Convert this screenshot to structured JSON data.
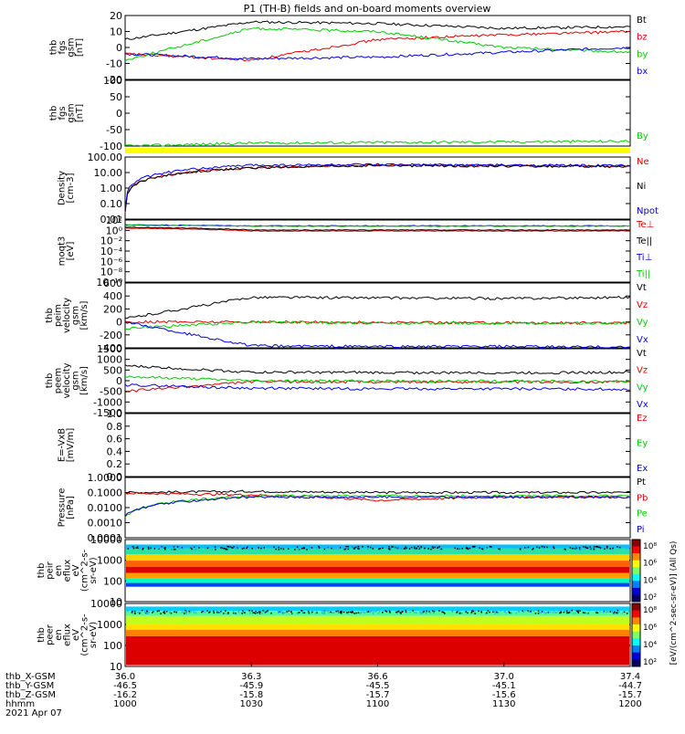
{
  "title": "P1 (TH-B) fields and on-board moments overview",
  "colors": {
    "black": "#000000",
    "red": "#dd0000",
    "green": "#00cc00",
    "blue": "#0000dd",
    "yellow": "#ffff00"
  },
  "panels": [
    {
      "id": "fgs",
      "ylabel": [
        "thb",
        "fgs",
        "gsm",
        "[nT]"
      ],
      "ticks": [
        "20",
        "10",
        "0",
        "-10",
        "-20"
      ],
      "legend": [
        {
          "label": "Bt",
          "color": "#000000"
        },
        {
          "label": "bz",
          "color": "#dd0000"
        },
        {
          "label": "by",
          "color": "#00cc00"
        },
        {
          "label": "bx",
          "color": "#0000dd"
        }
      ]
    },
    {
      "id": "fgs-dsl",
      "ylabel": [
        "thb",
        "fgs",
        "gsm",
        "[nT]"
      ],
      "ticks": [
        "100",
        "50",
        "0",
        "-50",
        "-100"
      ],
      "legend": [
        {
          "label": "By",
          "color": "#00cc00"
        }
      ]
    },
    {
      "id": "density",
      "ylabel": [
        "Density",
        "[cm-3]"
      ],
      "ticks": [
        "100.00",
        "10.00",
        "1.00",
        "0.10",
        "0.01"
      ],
      "legend": [
        {
          "label": "Ne",
          "color": "#dd0000"
        },
        {
          "label": "Ni",
          "color": "#000000"
        },
        {
          "label": "Npot",
          "color": "#0000dd"
        }
      ]
    },
    {
      "id": "temp",
      "ylabel": [
        "moqt3",
        "[eV]"
      ],
      "ticks": [
        "10²",
        "10⁰",
        "10⁻²",
        "10⁻⁴",
        "10⁻⁶",
        "10⁻⁸",
        "10⁻¹⁰"
      ],
      "legend": [
        {
          "label": "Te⊥",
          "color": "#dd0000"
        },
        {
          "label": "Te||",
          "color": "#000000"
        },
        {
          "label": "Ti⊥",
          "color": "#0000dd"
        },
        {
          "label": "Ti||",
          "color": "#00cc00"
        }
      ]
    },
    {
      "id": "peim",
      "ylabel": [
        "thb",
        "peim",
        "velocity",
        "gsm",
        "[km/s]"
      ],
      "ticks": [
        "600",
        "400",
        "200",
        "0",
        "-200",
        "-400"
      ],
      "legend": [
        {
          "label": "Vt",
          "color": "#000000"
        },
        {
          "label": "Vz",
          "color": "#dd0000"
        },
        {
          "label": "Vy",
          "color": "#00cc00"
        },
        {
          "label": "Vx",
          "color": "#0000dd"
        }
      ]
    },
    {
      "id": "peem",
      "ylabel": [
        "thb",
        "peem",
        "velocity",
        "gsm",
        "[km/s]"
      ],
      "ticks": [
        "1500",
        "1000",
        "500",
        "0",
        "-500",
        "-1000",
        "-1500"
      ],
      "legend": [
        {
          "label": "Vt",
          "color": "#000000"
        },
        {
          "label": "Vz",
          "color": "#dd0000"
        },
        {
          "label": "Vy",
          "color": "#00cc00"
        },
        {
          "label": "Vx",
          "color": "#0000dd"
        }
      ]
    },
    {
      "id": "efield",
      "ylabel": [
        "E=-VxB",
        "[mV/m]"
      ],
      "ticks": [
        "1.0",
        "0.8",
        "0.6",
        "0.4",
        "0.2",
        "0.0"
      ],
      "legend": [
        {
          "label": "Ez",
          "color": "#dd0000"
        },
        {
          "label": "Ey",
          "color": "#00cc00"
        },
        {
          "label": "Ex",
          "color": "#0000dd"
        }
      ]
    },
    {
      "id": "pressure",
      "ylabel": [
        "Pressure",
        "[nPa]"
      ],
      "ticks": [
        "1.0000",
        "0.1000",
        "0.0100",
        "0.0010",
        "0.0001"
      ],
      "legend": [
        {
          "label": "Pt",
          "color": "#000000"
        },
        {
          "label": "Pb",
          "color": "#dd0000"
        },
        {
          "label": "Pe",
          "color": "#00cc00"
        },
        {
          "label": "Pi",
          "color": "#0000dd"
        }
      ]
    },
    {
      "id": "peir",
      "ylabel": [
        "thb",
        "peir",
        "en",
        "eflux",
        "eV",
        "(cm^2-s-",
        "sr-eV)"
      ],
      "ticks": [
        "10000",
        "1000",
        "100",
        "10"
      ]
    },
    {
      "id": "peer",
      "ylabel": [
        "thb",
        "peer",
        "en",
        "eflux",
        "eV",
        "(cm^2-s-",
        "sr-eV)"
      ],
      "ticks": [
        "10000",
        "1000",
        "100",
        "10"
      ]
    }
  ],
  "colorbar": {
    "ticks": [
      "10⁸",
      "10⁶",
      "10⁴",
      "10²"
    ],
    "label": "[eV/(cm^2-sec-sr-eV)] (All Qs)"
  },
  "xaxis": {
    "row_labels": [
      "thb_X-GSM",
      "thb_Y-GSM",
      "thb_Z-GSM",
      "hhmm"
    ],
    "date": "2021 Apr 07",
    "columns": [
      {
        "x": "36.0",
        "y": "-46.5",
        "z": "-16.2",
        "hhmm": "1000"
      },
      {
        "x": "36.3",
        "y": "-45.9",
        "z": "-15.8",
        "hhmm": "1030"
      },
      {
        "x": "36.6",
        "y": "-45.5",
        "z": "-15.7",
        "hhmm": "1100"
      },
      {
        "x": "37.0",
        "y": "-45.1",
        "z": "-15.6",
        "hhmm": "1130"
      },
      {
        "x": "37.4",
        "y": "-44.7",
        "z": "-15.7",
        "hhmm": "1200"
      }
    ]
  },
  "chart_data": {
    "type": "line",
    "title": "P1 (TH-B) fields and on-board moments overview",
    "x": [
      "1000",
      "1030",
      "1100",
      "1130",
      "1200"
    ],
    "panels": [
      {
        "name": "fgs gsm",
        "ylim": [
          -20,
          20
        ],
        "series": [
          {
            "name": "Bt",
            "color": "#000000",
            "values": [
              5,
              16,
              15,
              12,
              13
            ]
          },
          {
            "name": "bz",
            "color": "#dd0000",
            "values": [
              -4,
              -8,
              5,
              8,
              10
            ]
          },
          {
            "name": "by",
            "color": "#00cc00",
            "values": [
              -8,
              12,
              10,
              0,
              -3
            ]
          },
          {
            "name": "bx",
            "color": "#0000dd",
            "values": [
              -4,
              -7,
              -6,
              -3,
              0
            ]
          }
        ]
      },
      {
        "name": "fgs gsm (By)",
        "ylim": [
          -120,
          100
        ],
        "series": [
          {
            "name": "By",
            "color": "#00cc00",
            "values": [
              -120,
              -110,
              -108,
              -106,
              -104
            ]
          }
        ]
      },
      {
        "name": "Density",
        "scale": "log",
        "ylim": [
          0.01,
          100
        ],
        "series": [
          {
            "name": "Ne",
            "color": "#dd0000",
            "values": [
              0.03,
              20,
              30,
              28,
              25
            ]
          },
          {
            "name": "Ni",
            "color": "#000000",
            "values": [
              0.03,
              20,
              28,
              26,
              24
            ]
          },
          {
            "name": "Npot",
            "color": "#0000dd",
            "values": [
              0.04,
              30,
              32,
              30,
              28
            ]
          }
        ]
      },
      {
        "name": "moqt3",
        "scale": "log",
        "series": [
          {
            "name": "Te⊥",
            "color": "#dd0000",
            "values": [
              20,
              5,
              5,
              5,
              5
            ]
          },
          {
            "name": "Te||",
            "color": "#000000",
            "values": [
              30,
              8,
              8,
              8,
              8
            ]
          },
          {
            "name": "Ti⊥",
            "color": "#0000dd",
            "values": [
              100,
              60,
              60,
              60,
              60
            ]
          },
          {
            "name": "Ti||",
            "color": "#00cc00",
            "values": [
              80,
              50,
              50,
              50,
              50
            ]
          }
        ]
      },
      {
        "name": "peim velocity",
        "ylim": [
          -400,
          600
        ],
        "series": [
          {
            "name": "Vt",
            "color": "#000000",
            "values": [
              50,
              380,
              370,
              360,
              380
            ]
          },
          {
            "name": "Vz",
            "color": "#dd0000",
            "values": [
              0,
              0,
              -10,
              -10,
              -20
            ]
          },
          {
            "name": "Vy",
            "color": "#00cc00",
            "values": [
              -100,
              0,
              -20,
              -20,
              -20
            ]
          },
          {
            "name": "Vx",
            "color": "#0000dd",
            "values": [
              0,
              -370,
              -380,
              -380,
              -390
            ]
          }
        ]
      },
      {
        "name": "peem velocity",
        "ylim": [
          -1500,
          1500
        ],
        "series": [
          {
            "name": "Vt",
            "color": "#000000",
            "values": [
              700,
              400,
              380,
              370,
              390
            ]
          },
          {
            "name": "Vz",
            "color": "#dd0000",
            "values": [
              -500,
              -50,
              -60,
              -60,
              -60
            ]
          },
          {
            "name": "Vy",
            "color": "#00cc00",
            "values": [
              200,
              0,
              -20,
              -20,
              -20
            ]
          },
          {
            "name": "Vx",
            "color": "#0000dd",
            "values": [
              -200,
              -350,
              -380,
              -380,
              -400
            ]
          }
        ]
      },
      {
        "name": "E=-VxB",
        "ylim": [
          0,
          1
        ],
        "series": [
          {
            "name": "Ez",
            "color": "#dd0000",
            "values": []
          },
          {
            "name": "Ey",
            "color": "#00cc00",
            "values": []
          },
          {
            "name": "Ex",
            "color": "#0000dd",
            "values": []
          }
        ]
      },
      {
        "name": "Pressure",
        "scale": "log",
        "ylim": [
          0.0001,
          1
        ],
        "series": [
          {
            "name": "Pt",
            "color": "#000000",
            "values": [
              0.1,
              0.12,
              0.1,
              0.1,
              0.1
            ]
          },
          {
            "name": "Pb",
            "color": "#dd0000",
            "values": [
              0.09,
              0.07,
              0.03,
              0.05,
              0.05
            ]
          },
          {
            "name": "Pe",
            "color": "#00cc00",
            "values": [
              0.002,
              0.06,
              0.06,
              0.06,
              0.06
            ]
          },
          {
            "name": "Pi",
            "color": "#0000dd",
            "values": [
              0.003,
              0.05,
              0.05,
              0.05,
              0.05
            ]
          }
        ]
      },
      {
        "name": "peir en eflux",
        "type": "heatmap",
        "scale": "log",
        "ylim": [
          5,
          20000
        ],
        "clim": [
          100,
          100000000
        ]
      },
      {
        "name": "peer en eflux",
        "type": "heatmap",
        "scale": "log",
        "ylim": [
          5,
          20000
        ],
        "clim": [
          100,
          100000000
        ]
      }
    ]
  }
}
